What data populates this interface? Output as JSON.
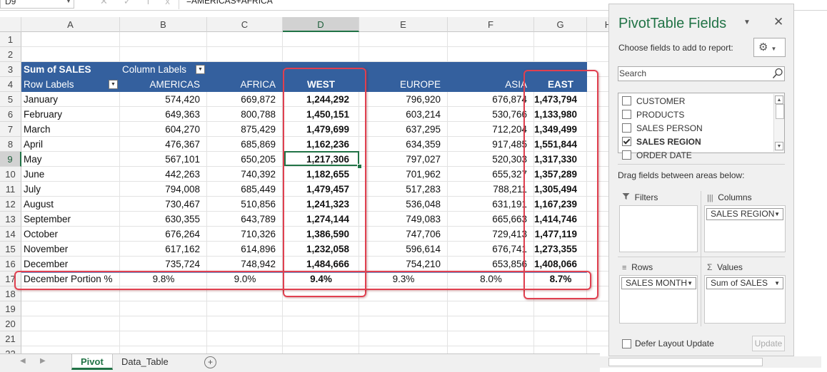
{
  "formula_bar": {
    "name_box": "D9",
    "buttons": "✕✓fx",
    "formula": "=AMERICAS+AFRICA"
  },
  "columns": [
    "A",
    "B",
    "C",
    "D",
    "E",
    "F",
    "G",
    "H"
  ],
  "rows": [
    "1",
    "2",
    "3",
    "4",
    "5",
    "6",
    "7",
    "8",
    "9",
    "10",
    "11",
    "12",
    "13",
    "14",
    "15",
    "16",
    "17",
    "18",
    "19",
    "20",
    "21",
    "22"
  ],
  "pivot": {
    "corner": "Sum of SALES",
    "column_labels": "Column Labels",
    "row_labels": "Row Labels",
    "headers": [
      "AMERICAS",
      "AFRICA",
      "WEST",
      "EUROPE",
      "ASIA",
      "EAST"
    ],
    "months": [
      {
        "label": "January",
        "values": [
          "574,420",
          "669,872",
          "1,244,292",
          "796,920",
          "676,874",
          "1,473,794"
        ]
      },
      {
        "label": "February",
        "values": [
          "649,363",
          "800,788",
          "1,450,151",
          "603,214",
          "530,766",
          "1,133,980"
        ]
      },
      {
        "label": "March",
        "values": [
          "604,270",
          "875,429",
          "1,479,699",
          "637,295",
          "712,204",
          "1,349,499"
        ]
      },
      {
        "label": "April",
        "values": [
          "476,367",
          "685,869",
          "1,162,236",
          "634,359",
          "917,485",
          "1,551,844"
        ]
      },
      {
        "label": "May",
        "values": [
          "567,101",
          "650,205",
          "1,217,306",
          "797,027",
          "520,303",
          "1,317,330"
        ]
      },
      {
        "label": "June",
        "values": [
          "442,263",
          "740,392",
          "1,182,655",
          "701,962",
          "655,327",
          "1,357,289"
        ]
      },
      {
        "label": "July",
        "values": [
          "794,008",
          "685,449",
          "1,479,457",
          "517,283",
          "788,211",
          "1,305,494"
        ]
      },
      {
        "label": "August",
        "values": [
          "730,467",
          "510,856",
          "1,241,323",
          "536,048",
          "631,191",
          "1,167,239"
        ]
      },
      {
        "label": "September",
        "values": [
          "630,355",
          "643,789",
          "1,274,144",
          "749,083",
          "665,663",
          "1,414,746"
        ]
      },
      {
        "label": "October",
        "values": [
          "676,264",
          "710,326",
          "1,386,590",
          "747,706",
          "729,413",
          "1,477,119"
        ]
      },
      {
        "label": "November",
        "values": [
          "617,162",
          "614,896",
          "1,232,058",
          "596,614",
          "676,741",
          "1,273,355"
        ]
      },
      {
        "label": "December",
        "values": [
          "735,724",
          "748,942",
          "1,484,666",
          "754,210",
          "653,856",
          "1,408,066"
        ]
      }
    ],
    "summary": {
      "label": "December Portion %",
      "values": [
        "9.8%",
        "9.0%",
        "9.4%",
        "9.3%",
        "8.0%",
        "8.7%"
      ]
    }
  },
  "tabs": {
    "sheets": [
      "Pivot",
      "Data_Table"
    ],
    "active": "Pivot",
    "add_label": "+"
  },
  "pane": {
    "title": "PivotTable Fields",
    "subtitle": "Choose fields to add to report:",
    "search_placeholder": "Search",
    "fields": [
      {
        "label": "CUSTOMER",
        "checked": false
      },
      {
        "label": "PRODUCTS",
        "checked": false
      },
      {
        "label": "SALES PERSON",
        "checked": false
      },
      {
        "label": "SALES REGION",
        "checked": true
      },
      {
        "label": "ORDER DATE",
        "checked": false
      }
    ],
    "drag_label": "Drag fields between areas below:",
    "filters_title": "Filters",
    "columns_title": "Columns",
    "rows_title": "Rows",
    "values_title": "Values",
    "columns_chip": "SALES REGION",
    "rows_chip": "SALES MONTH",
    "values_chip": "Sum of SALES",
    "defer_label": "Defer Layout Update",
    "update_label": "Update"
  },
  "colors": {
    "accent": "#217346",
    "pivot_header": "#34609e",
    "highlight_box": "#e04050"
  }
}
